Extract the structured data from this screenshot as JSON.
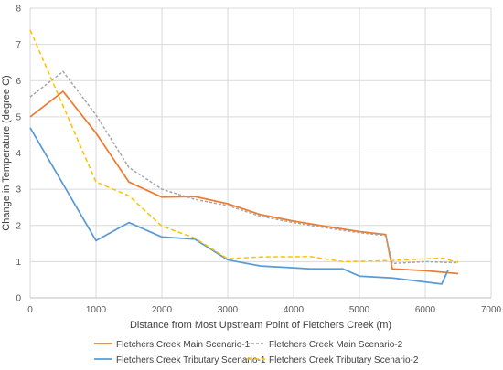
{
  "chart_data": {
    "type": "line",
    "title": "",
    "xlabel": "Distance from Most Upstream Point of Fletchers Creek (m)",
    "ylabel": "Change in Temperature (degree C)",
    "xlim": [
      0,
      7000
    ],
    "ylim": [
      0,
      8
    ],
    "x_ticks": [
      0,
      1000,
      2000,
      3000,
      4000,
      5000,
      6000,
      7000
    ],
    "y_ticks": [
      0,
      1,
      2,
      3,
      4,
      5,
      6,
      7,
      8
    ],
    "grid": true,
    "legend_position": "bottom",
    "series": [
      {
        "name": "Fletchers Creek Main Scenario-1",
        "color": "#ED7D31",
        "dash": "solid",
        "x": [
          0,
          500,
          1000,
          1500,
          2000,
          2500,
          3000,
          3500,
          4000,
          4500,
          5000,
          5400,
          5500,
          6000,
          6500
        ],
        "y": [
          5.0,
          5.7,
          4.55,
          3.2,
          2.78,
          2.8,
          2.6,
          2.3,
          2.12,
          1.97,
          1.83,
          1.75,
          0.8,
          0.75,
          0.67
        ]
      },
      {
        "name": "Fletchers Creek Main Scenario-2",
        "color": "#A5A5A5",
        "dash": "dashed",
        "x": [
          0,
          500,
          1000,
          1500,
          2000,
          2500,
          3000,
          3500,
          4000,
          4500,
          5000,
          5400,
          5500,
          6000,
          6500
        ],
        "y": [
          5.55,
          6.25,
          5.05,
          3.6,
          3.0,
          2.72,
          2.55,
          2.25,
          2.08,
          1.93,
          1.8,
          1.72,
          0.95,
          1.0,
          0.97
        ]
      },
      {
        "name": "Fletchers Creek Tributary Scenario-1",
        "color": "#5B9BD5",
        "dash": "solid",
        "x": [
          0,
          1000,
          1500,
          2000,
          2500,
          3000,
          3500,
          4000,
          4250,
          4750,
          5000,
          5500,
          6250,
          6350
        ],
        "y": [
          4.7,
          1.58,
          2.08,
          1.68,
          1.62,
          1.05,
          0.88,
          0.83,
          0.8,
          0.8,
          0.6,
          0.55,
          0.38,
          0.78
        ]
      },
      {
        "name": "Fletchers Creek Tributary Scenario-2",
        "color": "#FFC000",
        "dash": "dashed",
        "x": [
          0,
          1000,
          1500,
          2000,
          2500,
          3000,
          3500,
          4250,
          4750,
          5500,
          6250,
          6500
        ],
        "y": [
          7.4,
          3.2,
          2.82,
          1.98,
          1.65,
          1.08,
          1.13,
          1.14,
          1.0,
          1.03,
          1.1,
          0.98
        ]
      }
    ]
  }
}
